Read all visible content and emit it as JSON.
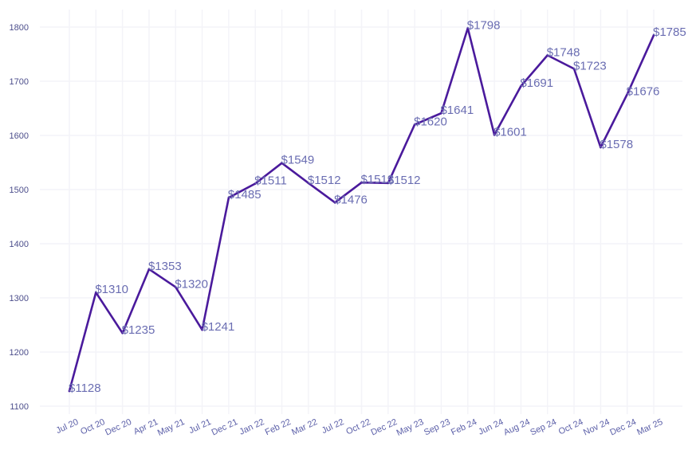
{
  "chart_data": {
    "type": "line",
    "title": "",
    "xlabel": "",
    "ylabel": "",
    "categories": [
      "Jul 20",
      "Oct 20",
      "Dec 20",
      "Apr 21",
      "May 21",
      "Jul 21",
      "Dec 21",
      "Jan 22",
      "Feb 22",
      "Mar 22",
      "Jul 22",
      "Oct 22",
      "Dec 22",
      "May 23",
      "Sep 23",
      "Feb 24",
      "Jun 24",
      "Aug 24",
      "Sep 24",
      "Oct 24",
      "Nov 24",
      "Dec 24",
      "Mar 25"
    ],
    "series": [
      {
        "name": "",
        "color": "#4a1a9c",
        "values": [
          1128,
          1310,
          1235,
          1353,
          1320,
          1241,
          1485,
          1511,
          1549,
          1512,
          1476,
          1513,
          1512,
          1620,
          1641,
          1798,
          1601,
          1691,
          1748,
          1723,
          1578,
          1676,
          1785
        ]
      }
    ],
    "data_labels": [
      "$1128",
      "$1310",
      "$1235",
      "$1353",
      "$1320",
      "$1241",
      "$1485",
      "$1511",
      "$1549",
      "$1512",
      "$1476",
      "$1513",
      "$1512",
      "$1620",
      "$1641",
      "$1798",
      "$1601",
      "$1691",
      "$1748",
      "$1723",
      "$1578",
      "$1676",
      "$1785"
    ],
    "ylim": [
      1100,
      1800
    ],
    "yticks": [
      1100,
      1200,
      1300,
      1400,
      1500,
      1600,
      1700,
      1800
    ],
    "grid": true,
    "legend": "none"
  }
}
